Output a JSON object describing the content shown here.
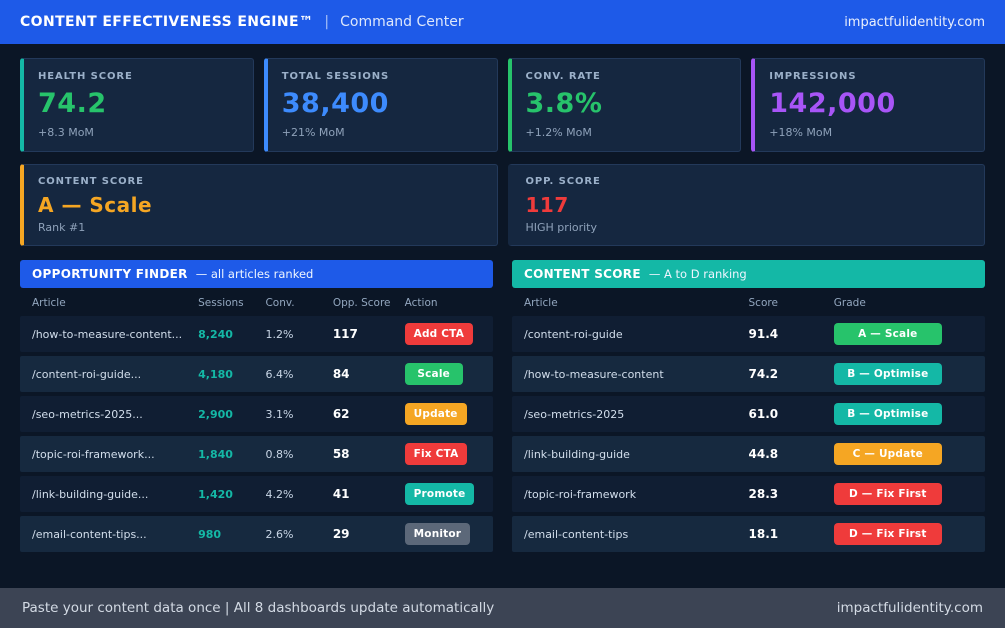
{
  "colors": {
    "header_blue": "#1e5ae8",
    "teal": "#14b8a6",
    "blue": "#3d8bfd",
    "green": "#27c36b",
    "purple": "#a855f7",
    "orange": "#f5a623",
    "red": "#ef3b3b",
    "gray": "#5c6879"
  },
  "header": {
    "title": "CONTENT EFFECTIVENESS ENGINE™",
    "separator": "|",
    "subtitle": "Command Center",
    "domain": "impactfulidentity.com"
  },
  "kpis": [
    {
      "label": "HEALTH SCORE",
      "value": "74.2",
      "delta": "+8.3 MoM",
      "color": "green",
      "accent": "teal"
    },
    {
      "label": "TOTAL SESSIONS",
      "value": "38,400",
      "delta": "+21% MoM",
      "color": "blue",
      "accent": "blue"
    },
    {
      "label": "CONV. RATE",
      "value": "3.8%",
      "delta": "+1.2% MoM",
      "color": "green",
      "accent": "green"
    },
    {
      "label": "IMPRESSIONS",
      "value": "142,000",
      "delta": "+18% MoM",
      "color": "purple",
      "accent": "purple"
    }
  ],
  "summary_cards": [
    {
      "label": "CONTENT SCORE",
      "value": "A  —  Scale",
      "sub": "Rank #1",
      "color": "orange",
      "accent": "orange"
    },
    {
      "label": "OPP. SCORE",
      "value": "117",
      "sub": "HIGH priority",
      "color": "red",
      "accent": "none"
    }
  ],
  "opportunity": {
    "title": "OPPORTUNITY FINDER",
    "title_note": "—  all articles ranked",
    "header_color": "blue",
    "columns": [
      "Article",
      "Sessions",
      "Conv.",
      "Opp. Score",
      "Action"
    ],
    "rows": [
      {
        "article": "/how-to-measure-content...",
        "sessions": "8,240",
        "conv": "1.2%",
        "score": "117",
        "action": "Add CTA",
        "action_color": "red"
      },
      {
        "article": "/content-roi-guide...",
        "sessions": "4,180",
        "conv": "6.4%",
        "score": "84",
        "action": "Scale",
        "action_color": "green"
      },
      {
        "article": "/seo-metrics-2025...",
        "sessions": "2,900",
        "conv": "3.1%",
        "score": "62",
        "action": "Update",
        "action_color": "orange"
      },
      {
        "article": "/topic-roi-framework...",
        "sessions": "1,840",
        "conv": "0.8%",
        "score": "58",
        "action": "Fix CTA",
        "action_color": "red"
      },
      {
        "article": "/link-building-guide...",
        "sessions": "1,420",
        "conv": "4.2%",
        "score": "41",
        "action": "Promote",
        "action_color": "teal"
      },
      {
        "article": "/email-content-tips...",
        "sessions": "980",
        "conv": "2.6%",
        "score": "29",
        "action": "Monitor",
        "action_color": "gray"
      }
    ]
  },
  "content_score": {
    "title": "CONTENT SCORE",
    "title_note": "—  A to D ranking",
    "header_color": "teal",
    "columns": [
      "Article",
      "Score",
      "Grade"
    ],
    "rows": [
      {
        "article": "/content-roi-guide",
        "score": "91.4",
        "grade": "A — Scale",
        "grade_color": "green"
      },
      {
        "article": "/how-to-measure-content",
        "score": "74.2",
        "grade": "B — Optimise",
        "grade_color": "teal"
      },
      {
        "article": "/seo-metrics-2025",
        "score": "61.0",
        "grade": "B — Optimise",
        "grade_color": "teal"
      },
      {
        "article": "/link-building-guide",
        "score": "44.8",
        "grade": "C — Update",
        "grade_color": "orange"
      },
      {
        "article": "/topic-roi-framework",
        "score": "28.3",
        "grade": "D — Fix First",
        "grade_color": "red"
      },
      {
        "article": "/email-content-tips",
        "score": "18.1",
        "grade": "D — Fix First",
        "grade_color": "red"
      }
    ]
  },
  "footer": {
    "left": "Paste your content data once  |  All 8 dashboards update automatically",
    "right": "impactfulidentity.com"
  }
}
